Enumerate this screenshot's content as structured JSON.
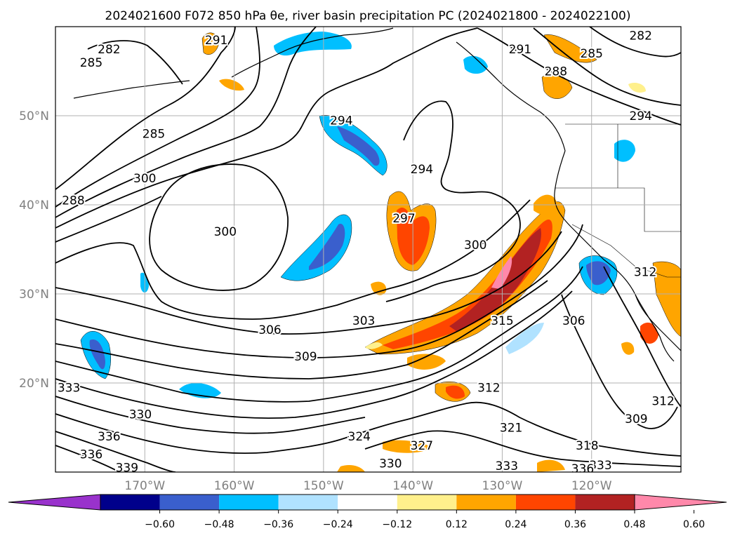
{
  "title": "2024021600 F072 850 hPa θe, river basin precipitation PC (2024021800 - 2024022100)",
  "map": {
    "lon_range": [
      -180,
      -110
    ],
    "lat_range": [
      10,
      60
    ],
    "lat_labels": [
      "50°N",
      "40°N",
      "30°N",
      "20°N"
    ],
    "lat_values": [
      50,
      40,
      30,
      20
    ],
    "lon_labels": [
      "170°W",
      "160°W",
      "150°W",
      "140°W",
      "130°W",
      "120°W"
    ],
    "lon_values": [
      -170,
      -160,
      -150,
      -140,
      -130,
      -120
    ],
    "contour_labels": [
      {
        "text": "285",
        "lon": -176,
        "lat": 56
      },
      {
        "text": "282",
        "lon": -174,
        "lat": 57.5
      },
      {
        "text": "291",
        "lon": -162,
        "lat": 58.5
      },
      {
        "text": "285",
        "lon": -169,
        "lat": 48
      },
      {
        "text": "300",
        "lon": -170,
        "lat": 43
      },
      {
        "text": "288",
        "lon": -178,
        "lat": 40.5
      },
      {
        "text": "300",
        "lon": -161,
        "lat": 37
      },
      {
        "text": "294",
        "lon": -148,
        "lat": 49.5
      },
      {
        "text": "294",
        "lon": -139,
        "lat": 44
      },
      {
        "text": "297",
        "lon": -141,
        "lat": 38.5
      },
      {
        "text": "300",
        "lon": -133,
        "lat": 35.5
      },
      {
        "text": "291",
        "lon": -128,
        "lat": 57.5
      },
      {
        "text": "288",
        "lon": -124,
        "lat": 55
      },
      {
        "text": "285",
        "lon": -120,
        "lat": 57
      },
      {
        "text": "282",
        "lon": -114.5,
        "lat": 59
      },
      {
        "text": "294",
        "lon": -114.5,
        "lat": 50
      },
      {
        "text": "306",
        "lon": -156,
        "lat": 26
      },
      {
        "text": "303",
        "lon": -145.5,
        "lat": 27
      },
      {
        "text": "309",
        "lon": -152,
        "lat": 23
      },
      {
        "text": "315",
        "lon": -130,
        "lat": 27
      },
      {
        "text": "312",
        "lon": -131.5,
        "lat": 19.5
      },
      {
        "text": "306",
        "lon": -122,
        "lat": 27
      },
      {
        "text": "312",
        "lon": -114,
        "lat": 32.5
      },
      {
        "text": "333",
        "lon": -178.5,
        "lat": 19.5
      },
      {
        "text": "330",
        "lon": -170.5,
        "lat": 16.5
      },
      {
        "text": "336",
        "lon": -174,
        "lat": 14
      },
      {
        "text": "336",
        "lon": -176,
        "lat": 12
      },
      {
        "text": "339",
        "lon": -172,
        "lat": 10.5
      },
      {
        "text": "324",
        "lon": -146,
        "lat": 14
      },
      {
        "text": "327",
        "lon": -139,
        "lat": 13
      },
      {
        "text": "330",
        "lon": -142.5,
        "lat": 11
      },
      {
        "text": "321",
        "lon": -129,
        "lat": 15
      },
      {
        "text": "333",
        "lon": -129.5,
        "lat": 10.7
      },
      {
        "text": "318",
        "lon": -120.5,
        "lat": 13
      },
      {
        "text": "333",
        "lon": -119,
        "lat": 10.8
      },
      {
        "text": "336",
        "lon": -121,
        "lat": 10.4
      },
      {
        "text": "309",
        "lon": -115,
        "lat": 16
      },
      {
        "text": "312",
        "lon": -112,
        "lat": 18
      }
    ]
  },
  "colorbar": {
    "tick_labels": [
      "−0.60",
      "−0.48",
      "−0.36",
      "−0.24",
      "−0.12",
      "0.12",
      "0.24",
      "0.36",
      "0.48",
      "0.60"
    ],
    "colors": [
      "#9932cc",
      "#00008b",
      "#3a5fcd",
      "#00bfff",
      "#b0e2ff",
      "#ffffff",
      "#fff08c",
      "#ffa500",
      "#ff4500",
      "#b22222",
      "#ff88aa"
    ]
  }
}
